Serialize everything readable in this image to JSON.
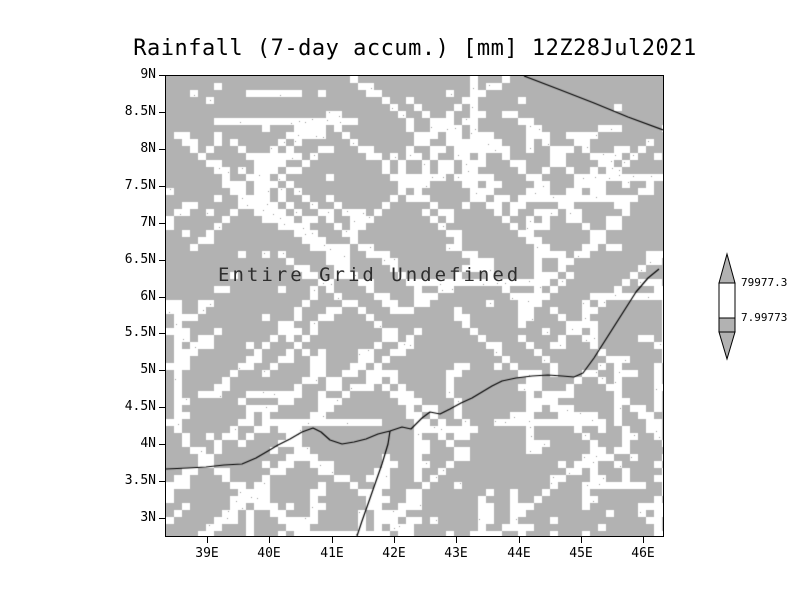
{
  "title": "Rainfall (7-day accum.) [mm] 12Z28Jul2021",
  "map": {
    "overlay_text": "Entire Grid Undefined"
  },
  "axes": {
    "y_ticks": [
      "9N",
      "8.5N",
      "8N",
      "7.5N",
      "7N",
      "6.5N",
      "6N",
      "5.5N",
      "5N",
      "4.5N",
      "4N",
      "3.5N",
      "3N"
    ],
    "x_ticks": [
      "39E",
      "40E",
      "41E",
      "42E",
      "43E",
      "44E",
      "45E",
      "46E"
    ]
  },
  "colorbar": {
    "labels": [
      "79977.3",
      "7.99773"
    ]
  },
  "colors": {
    "map_gray": "#b2b2b2",
    "undefined_white": "#ffffff",
    "coastline": "#000000",
    "text": "#000000"
  },
  "chart_data": {
    "type": "heatmap",
    "title": "Rainfall (7-day accum.) [mm] 12Z28Jul2021",
    "variable": "Rainfall (7-day accum.)",
    "units": "mm",
    "valid_time": "12Z28Jul2021",
    "x_ticks": [
      "39E",
      "40E",
      "41E",
      "42E",
      "43E",
      "44E",
      "45E",
      "46E"
    ],
    "y_ticks": [
      "9N",
      "8.5N",
      "8N",
      "7.5N",
      "7N",
      "6.5N",
      "6N",
      "5.5N",
      "5N",
      "4.5N",
      "4N",
      "3.5N",
      "3N"
    ],
    "x_range_deg_east": [
      38.3,
      46.3
    ],
    "y_range_deg_north": [
      2.8,
      9.0
    ],
    "values": "undefined",
    "status": "Entire Grid Undefined",
    "colorbar_labels": [
      79977.3,
      7.99773
    ],
    "legend_position": "right",
    "grid": false
  }
}
